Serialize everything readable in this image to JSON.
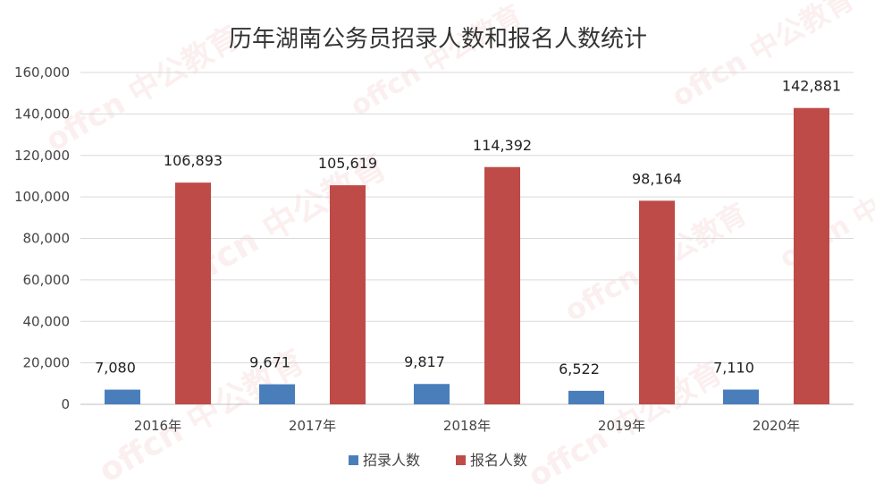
{
  "chart_data": {
    "type": "bar",
    "title": "历年湖南公务员招录人数和报名人数统计",
    "categories": [
      "2016年",
      "2017年",
      "2018年",
      "2019年",
      "2020年"
    ],
    "series": [
      {
        "name": "招录人数",
        "color": "#4a7ebb",
        "values": [
          7080,
          9671,
          9817,
          6522,
          7110
        ],
        "labels": [
          "7,080",
          "9,671",
          "9,817",
          "6,522",
          "7,110"
        ]
      },
      {
        "name": "报名人数",
        "color": "#be4b48",
        "values": [
          106893,
          105619,
          114392,
          98164,
          142881
        ],
        "labels": [
          "106,893",
          "105,619",
          "114,392",
          "98,164",
          "142,881"
        ]
      }
    ],
    "yticks": [
      "0",
      "20,000",
      "40,000",
      "60,000",
      "80,000",
      "100,000",
      "120,000",
      "140,000",
      "160,000"
    ],
    "ylim": [
      0,
      160000
    ],
    "grid": true,
    "legend": "bottom",
    "watermark": "offcn 中公教育"
  }
}
